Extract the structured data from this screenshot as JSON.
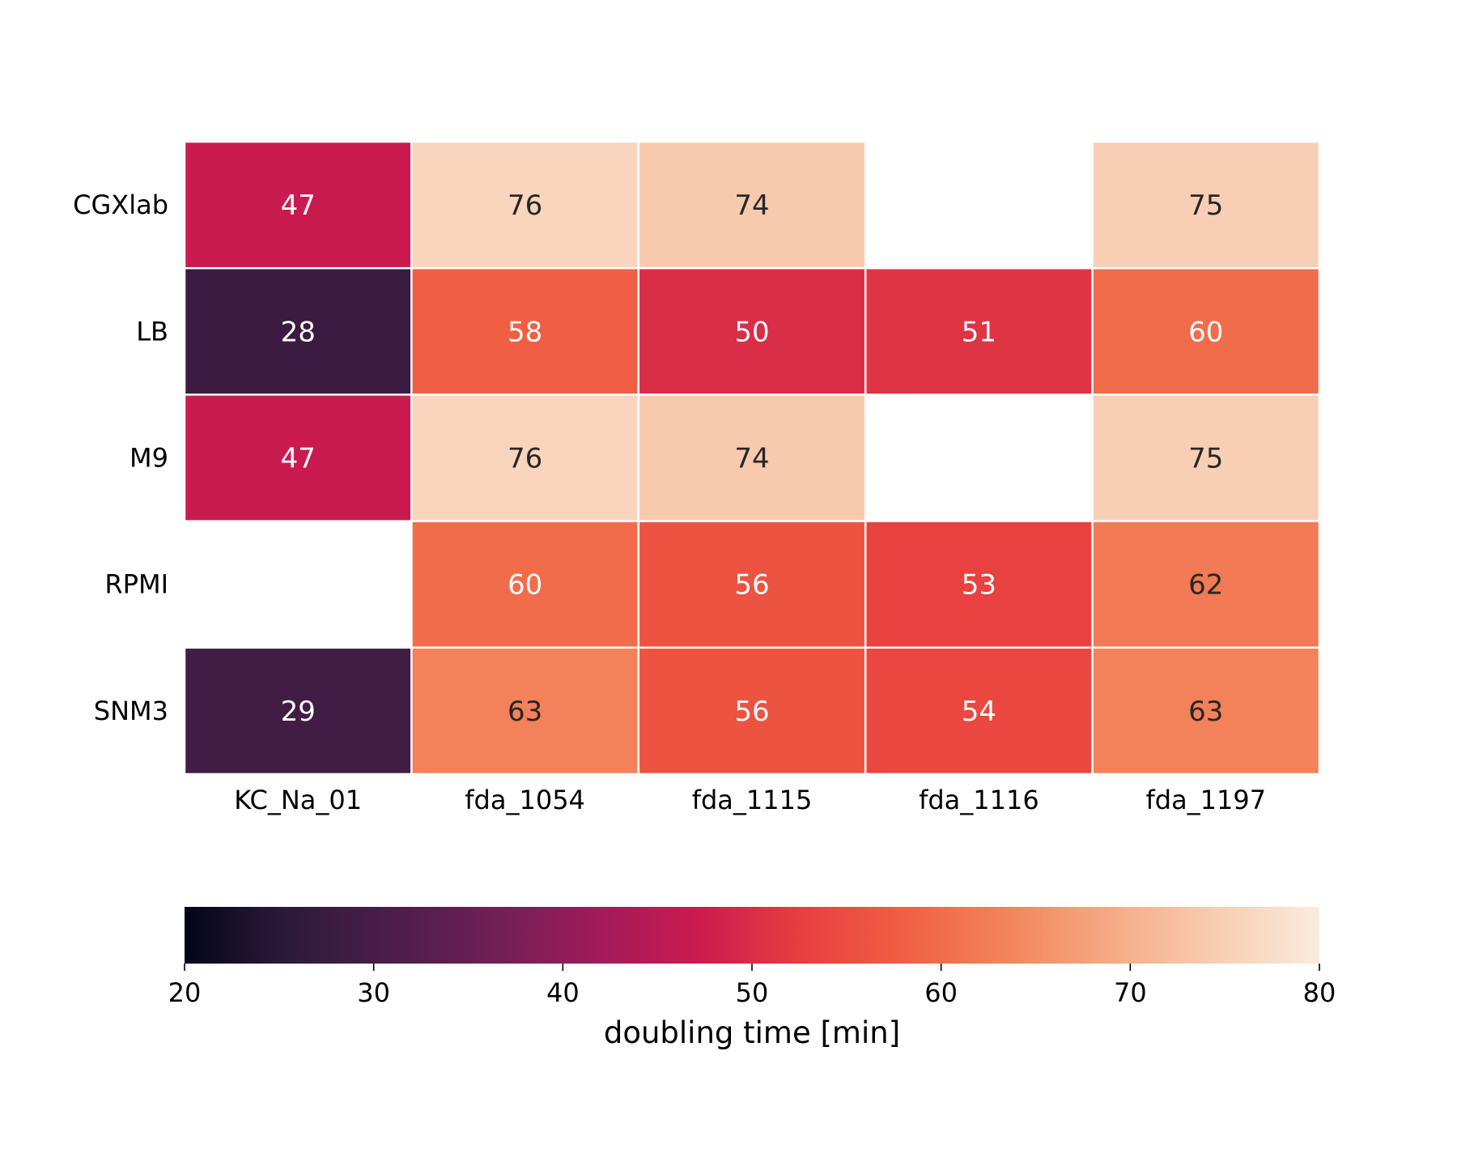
{
  "chart_data": {
    "type": "heatmap",
    "title": "",
    "xlabel": "",
    "ylabel": "",
    "columns": [
      "KC_Na_01",
      "fda_1054",
      "fda_1115",
      "fda_1116",
      "fda_1197"
    ],
    "rows": [
      "CGXlab",
      "LB",
      "M9",
      "RPMI",
      "SNM3"
    ],
    "values": [
      [
        47,
        76,
        74,
        null,
        75
      ],
      [
        28,
        58,
        50,
        51,
        60
      ],
      [
        47,
        76,
        74,
        null,
        75
      ],
      [
        null,
        60,
        56,
        53,
        62
      ],
      [
        29,
        63,
        56,
        54,
        63
      ]
    ],
    "colorbar": {
      "label": "doubling time [min]",
      "range": [
        20,
        80
      ],
      "ticks": [
        20,
        30,
        40,
        50,
        60,
        70,
        80
      ],
      "orientation": "horizontal",
      "placement": "bottom",
      "colormap": "rocket",
      "colormap_stops": [
        "#03051a",
        "#2d1a3b",
        "#4c1d4b",
        "#701f57",
        "#a11a5b",
        "#cb1b4f",
        "#e83f3f",
        "#f06043",
        "#f3855c",
        "#f6ab85",
        "#f8cdb1",
        "#faebdd"
      ]
    },
    "missing_color": "#ffffff"
  }
}
